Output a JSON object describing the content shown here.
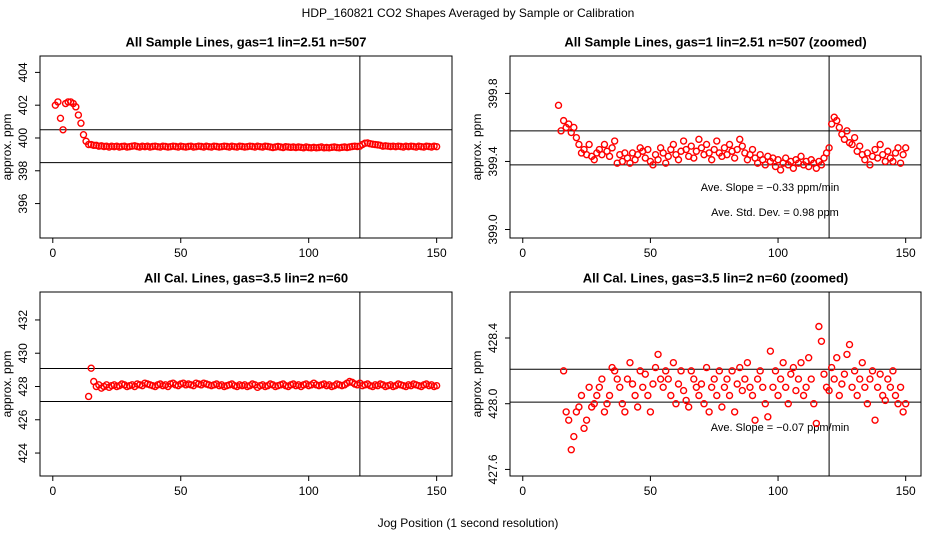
{
  "title": "HDP_160821  CO2 Shapes Averaged by Sample or Calibration",
  "xlabel": "Jog Position (1 second resolution)",
  "chart_data": [
    {
      "type": "scatter",
      "title": "All Sample Lines, gas=1 lin=2.51 n=507",
      "ylabel": "approx. ppm",
      "color": "#ff0000",
      "xlim": [
        -5,
        156
      ],
      "xticks": [
        0,
        50,
        100,
        150
      ],
      "ylim": [
        393.9,
        405
      ],
      "yticks": [
        396,
        398,
        400,
        402,
        404
      ],
      "hlines": [
        400.5,
        398.5
      ],
      "vlines": [
        120
      ],
      "x": [
        1,
        2,
        3,
        4,
        5,
        6,
        7,
        8,
        9,
        10,
        11,
        12,
        13,
        14,
        15,
        16,
        17,
        18,
        19,
        20,
        21,
        22,
        23,
        24,
        25,
        26,
        27,
        28,
        29,
        30,
        31,
        32,
        33,
        34,
        35,
        36,
        37,
        38,
        39,
        40,
        41,
        42,
        43,
        44,
        45,
        46,
        47,
        48,
        49,
        50,
        51,
        52,
        53,
        54,
        55,
        56,
        57,
        58,
        59,
        60,
        61,
        62,
        63,
        64,
        65,
        66,
        67,
        68,
        69,
        70,
        71,
        72,
        73,
        74,
        75,
        76,
        77,
        78,
        79,
        80,
        81,
        82,
        83,
        84,
        85,
        86,
        87,
        88,
        89,
        90,
        91,
        92,
        93,
        94,
        95,
        96,
        97,
        98,
        99,
        100,
        101,
        102,
        103,
        104,
        105,
        106,
        107,
        108,
        109,
        110,
        111,
        112,
        113,
        114,
        115,
        116,
        117,
        118,
        119,
        120,
        121,
        122,
        123,
        124,
        125,
        126,
        127,
        128,
        129,
        130,
        131,
        132,
        133,
        134,
        135,
        136,
        137,
        138,
        139,
        140,
        141,
        142,
        143,
        144,
        145,
        146,
        147,
        148,
        149,
        150
      ],
      "values": [
        402.0,
        402.2,
        401.2,
        400.5,
        402.1,
        402.2,
        402.2,
        402.1,
        401.9,
        401.4,
        400.9,
        400.2,
        399.8,
        399.6,
        399.6,
        399.55,
        399.55,
        399.5,
        399.52,
        399.48,
        399.5,
        399.45,
        399.5,
        399.47,
        399.5,
        399.45,
        399.48,
        399.5,
        399.45,
        399.47,
        399.5,
        399.52,
        399.48,
        399.45,
        399.5,
        399.47,
        399.5,
        399.45,
        399.48,
        399.5,
        399.47,
        399.45,
        399.5,
        399.48,
        399.45,
        399.47,
        399.5,
        399.48,
        399.45,
        399.5,
        399.47,
        399.45,
        399.48,
        399.5,
        399.45,
        399.47,
        399.5,
        399.48,
        399.45,
        399.5,
        399.47,
        399.45,
        399.5,
        399.48,
        399.45,
        399.47,
        399.5,
        399.48,
        399.45,
        399.5,
        399.47,
        399.45,
        399.5,
        399.48,
        399.45,
        399.47,
        399.5,
        399.48,
        399.45,
        399.5,
        399.47,
        399.45,
        399.5,
        399.48,
        399.45,
        399.42,
        399.45,
        399.48,
        399.45,
        399.42,
        399.47,
        399.45,
        399.43,
        399.45,
        399.42,
        399.45,
        399.43,
        399.4,
        399.45,
        399.42,
        399.4,
        399.43,
        399.4,
        399.42,
        399.45,
        399.4,
        399.42,
        399.4,
        399.43,
        399.45,
        399.42,
        399.4,
        399.43,
        399.45,
        399.42,
        399.45,
        399.48,
        399.5,
        399.48,
        399.5,
        399.6,
        399.68,
        399.7,
        399.65,
        399.62,
        399.6,
        399.58,
        399.55,
        399.5,
        399.52,
        399.5,
        399.48,
        399.5,
        399.47,
        399.5,
        399.48,
        399.45,
        399.5,
        399.47,
        399.5,
        399.48,
        399.45,
        399.5,
        399.47,
        399.45,
        399.5,
        399.48,
        399.45,
        399.5,
        399.47
      ]
    },
    {
      "type": "scatter",
      "title": "All Sample Lines, gas=1 lin=2.51 n=507 (zoomed)",
      "ylabel": "approx. ppm",
      "color": "#ff0000",
      "xlim": [
        -5,
        156
      ],
      "xticks": [
        0,
        50,
        100,
        150
      ],
      "ylim": [
        398.95,
        400.02
      ],
      "yticks": [
        {
          "value": 399,
          "label": "399.0"
        },
        399.4,
        399.8
      ],
      "hlines": [
        399.58,
        399.38
      ],
      "vlines": [
        120
      ],
      "annotations": [
        "Ave. Slope =  −0.33  ppm/min",
        "Ave. Std. Dev. =  0.98  ppm"
      ],
      "x": [
        14,
        15,
        16,
        17,
        18,
        19,
        20,
        21,
        22,
        23,
        24,
        25,
        26,
        27,
        28,
        29,
        30,
        31,
        32,
        33,
        34,
        35,
        36,
        37,
        38,
        39,
        40,
        41,
        42,
        43,
        44,
        45,
        46,
        47,
        48,
        49,
        50,
        51,
        52,
        53,
        54,
        55,
        56,
        57,
        58,
        59,
        60,
        61,
        62,
        63,
        64,
        65,
        66,
        67,
        68,
        69,
        70,
        71,
        72,
        73,
        74,
        75,
        76,
        77,
        78,
        79,
        80,
        81,
        82,
        83,
        84,
        85,
        86,
        87,
        88,
        89,
        90,
        91,
        92,
        93,
        94,
        95,
        96,
        97,
        98,
        99,
        100,
        101,
        102,
        103,
        104,
        105,
        106,
        107,
        108,
        109,
        110,
        111,
        112,
        113,
        114,
        115,
        116,
        117,
        118,
        119,
        120,
        121,
        122,
        123,
        124,
        125,
        126,
        127,
        128,
        129,
        130,
        131,
        132,
        133,
        134,
        135,
        136,
        137,
        138,
        139,
        140,
        141,
        142,
        143,
        144,
        145,
        146,
        147,
        148,
        149,
        150
      ],
      "values": [
        399.73,
        399.58,
        399.64,
        399.6,
        399.62,
        399.57,
        399.6,
        399.54,
        399.5,
        399.45,
        399.47,
        399.44,
        399.5,
        399.43,
        399.41,
        399.45,
        399.47,
        399.44,
        399.5,
        399.46,
        399.43,
        399.48,
        399.52,
        399.39,
        399.44,
        399.4,
        399.45,
        399.42,
        399.39,
        399.45,
        399.41,
        399.44,
        399.48,
        399.46,
        399.42,
        399.47,
        399.4,
        399.38,
        399.44,
        399.41,
        399.48,
        399.45,
        399.39,
        399.43,
        399.47,
        399.5,
        399.44,
        399.41,
        399.46,
        399.52,
        399.47,
        399.43,
        399.49,
        399.42,
        399.46,
        399.53,
        399.48,
        399.44,
        399.5,
        399.45,
        399.41,
        399.47,
        399.52,
        399.45,
        399.43,
        399.48,
        399.44,
        399.5,
        399.46,
        399.42,
        399.47,
        399.53,
        399.49,
        399.45,
        399.41,
        399.44,
        399.47,
        399.42,
        399.39,
        399.44,
        399.41,
        399.38,
        399.43,
        399.4,
        399.42,
        399.37,
        399.41,
        399.35,
        399.39,
        399.42,
        399.38,
        399.4,
        399.36,
        399.41,
        399.39,
        399.43,
        399.38,
        399.4,
        399.37,
        399.41,
        399.39,
        399.36,
        399.4,
        399.38,
        399.42,
        399.45,
        399.48,
        399.62,
        399.66,
        399.64,
        399.6,
        399.56,
        399.53,
        399.58,
        399.51,
        399.5,
        399.54,
        399.46,
        399.49,
        399.44,
        399.41,
        399.45,
        399.38,
        399.43,
        399.47,
        399.42,
        399.5,
        399.44,
        399.4,
        399.46,
        399.42,
        399.4,
        399.45,
        399.48,
        399.39,
        399.44,
        399.48
      ]
    },
    {
      "type": "scatter",
      "title": "All Cal. Lines, gas=3.5 lin=2 n=60",
      "ylabel": "approx. ppm",
      "color": "#ff0000",
      "xlim": [
        -5,
        156
      ],
      "xticks": [
        0,
        50,
        100,
        150
      ],
      "ylim": [
        422.62,
        433.68
      ],
      "yticks": [
        424,
        426,
        428,
        430,
        432
      ],
      "hlines": [
        429.08,
        427.1
      ],
      "vlines": [
        120
      ],
      "x": [
        14,
        15,
        16,
        17,
        18,
        19,
        20,
        21,
        22,
        23,
        24,
        25,
        26,
        27,
        28,
        29,
        30,
        31,
        32,
        33,
        34,
        35,
        36,
        37,
        38,
        39,
        40,
        41,
        42,
        43,
        44,
        45,
        46,
        47,
        48,
        49,
        50,
        51,
        52,
        53,
        54,
        55,
        56,
        57,
        58,
        59,
        60,
        61,
        62,
        63,
        64,
        65,
        66,
        67,
        68,
        69,
        70,
        71,
        72,
        73,
        74,
        75,
        76,
        77,
        78,
        79,
        80,
        81,
        82,
        83,
        84,
        85,
        86,
        87,
        88,
        89,
        90,
        91,
        92,
        93,
        94,
        95,
        96,
        97,
        98,
        99,
        100,
        101,
        102,
        103,
        104,
        105,
        106,
        107,
        108,
        109,
        110,
        111,
        112,
        113,
        114,
        115,
        116,
        117,
        118,
        119,
        120,
        121,
        122,
        123,
        124,
        125,
        126,
        127,
        128,
        129,
        130,
        131,
        132,
        133,
        134,
        135,
        136,
        137,
        138,
        139,
        140,
        141,
        142,
        143,
        144,
        145,
        146,
        147,
        148,
        149,
        150
      ],
      "values": [
        427.4,
        429.1,
        428.3,
        428.0,
        428.1,
        427.9,
        428.0,
        428.1,
        427.95,
        428.05,
        428.1,
        428.0,
        428.05,
        428.15,
        428.1,
        428.0,
        428.05,
        428.1,
        428.0,
        428.15,
        428.1,
        428.05,
        428.2,
        428.15,
        428.1,
        428.05,
        428.0,
        428.1,
        428.15,
        428.05,
        428.1,
        428.0,
        428.15,
        428.2,
        428.1,
        428.05,
        428.15,
        428.2,
        428.1,
        428.15,
        428.1,
        428.05,
        428.2,
        428.15,
        428.1,
        428.2,
        428.15,
        428.1,
        428.05,
        428.1,
        428.15,
        428.05,
        428.1,
        428.0,
        428.05,
        428.1,
        428.15,
        428.05,
        428.0,
        428.1,
        428.05,
        428.1,
        428.0,
        428.05,
        428.15,
        428.1,
        427.95,
        428.05,
        428.1,
        428.0,
        428.05,
        428.15,
        428.1,
        428.0,
        428.05,
        428.1,
        428.15,
        428.05,
        428.0,
        428.1,
        428.15,
        428.05,
        428.1,
        428.0,
        428.1,
        428.15,
        428.05,
        428.1,
        428.2,
        428.1,
        428.05,
        428.1,
        428.15,
        428.05,
        428.1,
        428.0,
        428.05,
        428.15,
        428.1,
        428.05,
        428.1,
        428.2,
        428.3,
        428.25,
        428.15,
        428.1,
        428.2,
        428.05,
        428.1,
        428.15,
        428.05,
        428.0,
        428.1,
        428.05,
        428.15,
        428.1,
        428.0,
        428.05,
        428.1,
        428.0,
        428.05,
        428.15,
        428.1,
        428.05,
        428.0,
        428.1,
        428.05,
        428.15,
        428.1,
        428.05,
        428.0,
        428.1,
        428.15,
        428.05,
        428.1,
        428.0,
        428.05
      ]
    },
    {
      "type": "scatter",
      "title": "All Cal. Lines, gas=3.5 lin=2 n=60 (zoomed)",
      "ylabel": "approx. ppm",
      "color": "#ff0000",
      "xlim": [
        -5,
        156
      ],
      "xticks": [
        0,
        50,
        100,
        150
      ],
      "ylim": [
        427.56,
        428.68
      ],
      "yticks": [
        427.6,
        {
          "value": 428,
          "label": "428.0"
        },
        428.4
      ],
      "hlines": [
        428.21,
        428.01
      ],
      "vlines": [
        120
      ],
      "annotations": [
        "Ave. Slope =  −0.07  ppm/min"
      ],
      "x": [
        16,
        17,
        18,
        19,
        20,
        21,
        22,
        23,
        24,
        25,
        26,
        27,
        28,
        29,
        30,
        31,
        32,
        33,
        34,
        35,
        36,
        37,
        38,
        39,
        40,
        41,
        42,
        43,
        44,
        45,
        46,
        47,
        48,
        49,
        50,
        51,
        52,
        53,
        54,
        55,
        56,
        57,
        58,
        59,
        60,
        61,
        62,
        63,
        64,
        65,
        66,
        67,
        68,
        69,
        70,
        71,
        72,
        73,
        74,
        75,
        76,
        77,
        78,
        79,
        80,
        81,
        82,
        83,
        84,
        85,
        86,
        87,
        88,
        89,
        90,
        91,
        92,
        93,
        94,
        95,
        96,
        97,
        98,
        99,
        100,
        101,
        102,
        103,
        104,
        105,
        106,
        107,
        108,
        109,
        110,
        111,
        112,
        113,
        114,
        115,
        116,
        117,
        118,
        119,
        120,
        121,
        122,
        123,
        124,
        125,
        126,
        127,
        128,
        129,
        130,
        131,
        132,
        133,
        134,
        135,
        136,
        137,
        138,
        139,
        140,
        141,
        142,
        143,
        144,
        145,
        146,
        147,
        148,
        149,
        150
      ],
      "values": [
        428.2,
        427.95,
        427.9,
        427.72,
        427.8,
        427.95,
        427.98,
        428.05,
        427.85,
        427.9,
        428.1,
        427.98,
        428.0,
        428.05,
        428.1,
        428.15,
        427.95,
        428.0,
        428.05,
        428.22,
        428.2,
        428.15,
        428.1,
        428.0,
        427.95,
        428.15,
        428.25,
        428.12,
        428.05,
        427.98,
        428.2,
        428.1,
        428.18,
        428.05,
        427.95,
        428.12,
        428.22,
        428.3,
        428.15,
        428.1,
        428.2,
        428.15,
        428.05,
        428.25,
        428.0,
        428.12,
        428.2,
        428.08,
        428.02,
        427.98,
        428.2,
        428.15,
        428.1,
        428.05,
        428.12,
        428.0,
        428.22,
        427.95,
        428.1,
        428.15,
        428.05,
        428.2,
        427.98,
        428.1,
        428.15,
        428.05,
        428.2,
        427.95,
        428.12,
        428.22,
        428.08,
        428.15,
        428.25,
        428.1,
        428.05,
        427.9,
        428.15,
        428.2,
        428.1,
        428.0,
        427.92,
        428.32,
        428.1,
        428.2,
        428.05,
        428.15,
        428.25,
        428.1,
        428.0,
        428.18,
        428.22,
        428.08,
        428.15,
        428.25,
        428.05,
        428.1,
        428.28,
        428.15,
        428.0,
        427.88,
        428.47,
        428.38,
        428.18,
        428.1,
        428.08,
        428.22,
        428.15,
        428.28,
        428.05,
        428.12,
        428.18,
        428.3,
        428.36,
        428.1,
        428.2,
        428.05,
        428.15,
        428.25,
        428.1,
        428.0,
        428.15,
        428.2,
        427.9,
        428.1,
        428.18,
        428.05,
        428.02,
        428.15,
        428.1,
        428.2,
        428.05,
        428.0,
        428.1,
        427.95,
        428.0
      ]
    }
  ]
}
